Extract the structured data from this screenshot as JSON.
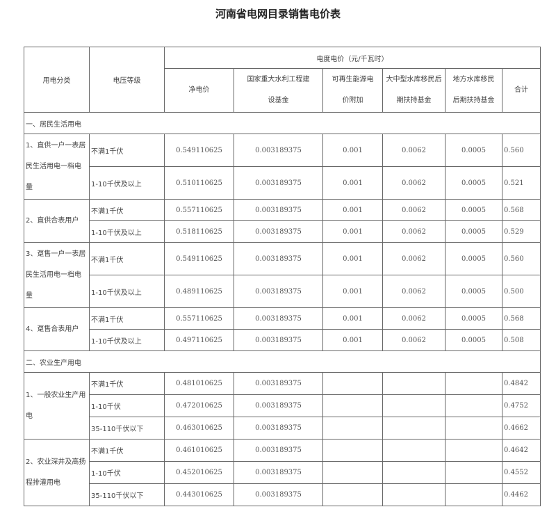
{
  "title": "河南省电网目录销售电价表",
  "header": {
    "category": "用电分类",
    "voltage": "电压等级",
    "price_group": "电度电价（元/千瓦时）",
    "columns": [
      "净电价",
      "国家重大水利工程建设基金",
      "可再生能源电价附加",
      "大中型水库移民后期扶持基金",
      "地方水库移民后期扶持基金",
      "合计"
    ]
  },
  "sections": [
    {
      "label": "一、居民生活用电",
      "groups": [
        {
          "label": "1、直供一户一表居民生活用电一档电量",
          "rows": [
            {
              "voltage": "不满1千伏",
              "values": [
                "0.549110625",
                "0.003189375",
                "0.001",
                "0.0062",
                "0.0005",
                "0.560"
              ]
            },
            {
              "voltage": "1-10千伏及以上",
              "values": [
                "0.510110625",
                "0.003189375",
                "0.001",
                "0.0062",
                "0.0005",
                "0.521"
              ]
            }
          ]
        },
        {
          "label": "2、直供合表用户",
          "rows": [
            {
              "voltage": "不满1千伏",
              "values": [
                "0.557110625",
                "0.003189375",
                "0.001",
                "0.0062",
                "0.0005",
                "0.568"
              ]
            },
            {
              "voltage": "1-10千伏及以上",
              "values": [
                "0.518110625",
                "0.003189375",
                "0.001",
                "0.0062",
                "0.0005",
                "0.529"
              ]
            }
          ]
        },
        {
          "label": "3、趸售一户一表居民生活用电一档电量",
          "rows": [
            {
              "voltage": "不满1千伏",
              "values": [
                "0.549110625",
                "0.003189375",
                "0.001",
                "0.0062",
                "0.0005",
                "0.560"
              ]
            },
            {
              "voltage": "1-10千伏及以上",
              "values": [
                "0.489110625",
                "0.003189375",
                "0.001",
                "0.0062",
                "0.0005",
                "0.500"
              ]
            }
          ]
        },
        {
          "label": "4、趸售合表用户",
          "rows": [
            {
              "voltage": "不满1千伏",
              "values": [
                "0.557110625",
                "0.003189375",
                "0.001",
                "0.0062",
                "0.0005",
                "0.568"
              ]
            },
            {
              "voltage": "1-10千伏及以上",
              "values": [
                "0.497110625",
                "0.003189375",
                "0.001",
                "0.0062",
                "0.0005",
                "0.508"
              ]
            }
          ]
        }
      ]
    },
    {
      "label": "二、农业生产用电",
      "groups": [
        {
          "label": "1、一般农业生产用电",
          "rows": [
            {
              "voltage": "不满1千伏",
              "values": [
                "0.481010625",
                "0.003189375",
                "",
                "",
                "",
                "0.4842"
              ]
            },
            {
              "voltage": "1-10千伏",
              "values": [
                "0.472010625",
                "0.003189375",
                "",
                "",
                "",
                "0.4752"
              ]
            },
            {
              "voltage": "35-110千伏以下",
              "values": [
                "0.463010625",
                "0.003189375",
                "",
                "",
                "",
                "0.4662"
              ]
            }
          ]
        },
        {
          "label": "2、农业深井及高扬程排灌用电",
          "rows": [
            {
              "voltage": "不满1千伏",
              "values": [
                "0.461010625",
                "0.003189375",
                "",
                "",
                "",
                "0.4642"
              ]
            },
            {
              "voltage": "1-10千伏",
              "values": [
                "0.452010625",
                "0.003189375",
                "",
                "",
                "",
                "0.4552"
              ]
            },
            {
              "voltage": "35-110千伏以下",
              "values": [
                "0.443010625",
                "0.003189375",
                "",
                "",
                "",
                "0.4462"
              ]
            }
          ]
        }
      ]
    }
  ]
}
